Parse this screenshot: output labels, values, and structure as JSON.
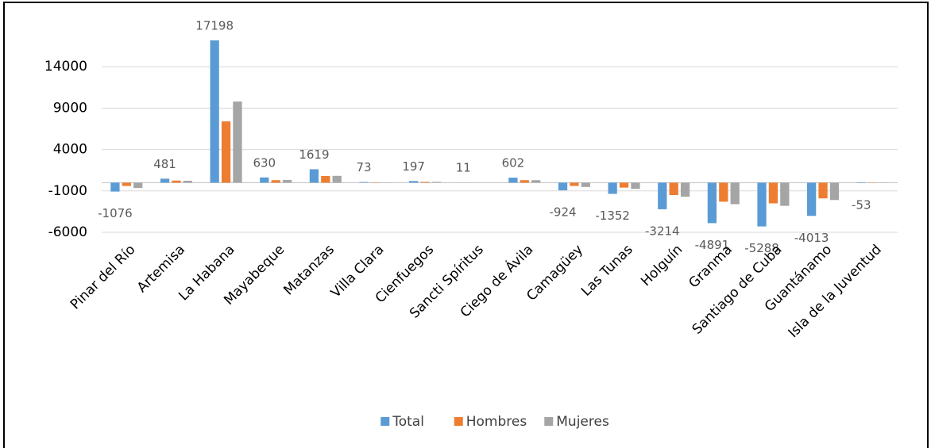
{
  "chart_data": {
    "type": "bar",
    "categories": [
      "Pinar del Río",
      "Artemisa",
      "La Habana",
      "Mayabeque",
      "Matanzas",
      "Villa Clara",
      "Cienfuegos",
      "Sancti Spíritus",
      "Ciego de Ávila",
      "Camagüey",
      "Las Tunas",
      "Holguín",
      "Granma",
      "Santiago de Cuba",
      "Guantánamo",
      "Isla de la Juventud"
    ],
    "series": [
      {
        "name": "Total",
        "color": "#5b9bd5",
        "values": [
          -1076,
          481,
          17198,
          630,
          1619,
          73,
          197,
          11,
          602,
          -924,
          -1352,
          -3214,
          -4891,
          -5288,
          -4013,
          -53
        ],
        "data_labels": true
      },
      {
        "name": "Hombres",
        "color": "#ed7d31",
        "values": [
          -400,
          250,
          7400,
          300,
          800,
          40,
          100,
          5,
          300,
          -400,
          -600,
          -1500,
          -2300,
          -2500,
          -1900,
          -25
        ]
      },
      {
        "name": "Mujeres",
        "color": "#a5a5a5",
        "values": [
          -650,
          230,
          9800,
          330,
          820,
          30,
          97,
          6,
          300,
          -520,
          -750,
          -1700,
          -2600,
          -2800,
          -2100,
          -28
        ]
      }
    ],
    "ylim": [
      -6000,
      19000
    ],
    "yticks": [
      -6000,
      -1000,
      4000,
      9000,
      14000
    ],
    "grid": true,
    "legend": "bottom"
  }
}
